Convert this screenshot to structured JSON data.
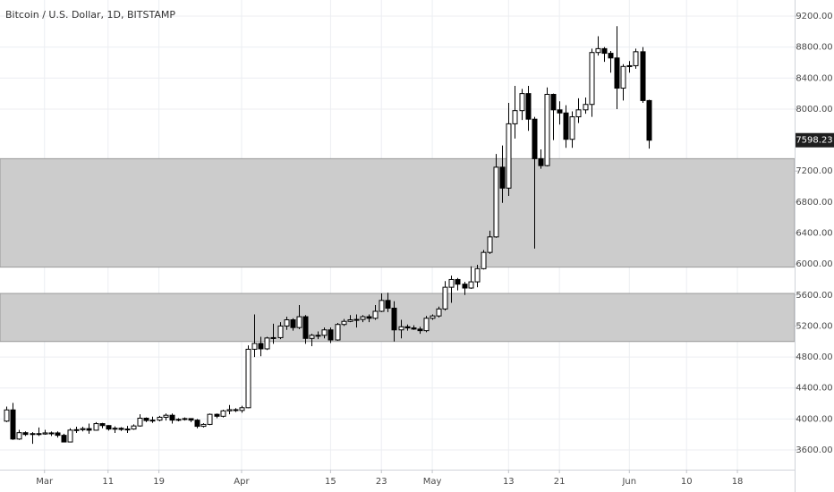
{
  "chart_data": {
    "type": "candlestick",
    "title": "Bitcoin / U.S. Dollar, 1D, BITSTAMP",
    "x": [
      "Feb 23",
      "Feb 24",
      "Feb 25",
      "Feb 26",
      "Feb 27",
      "Feb 28",
      "Mar 1",
      "Mar 2",
      "Mar 3",
      "Mar 4",
      "Mar 5",
      "Mar 6",
      "Mar 7",
      "Mar 8",
      "Mar 9",
      "Mar 10",
      "Mar 11",
      "Mar 12",
      "Mar 13",
      "Mar 14",
      "Mar 15",
      "Mar 16",
      "Mar 17",
      "Mar 18",
      "Mar 19",
      "Mar 20",
      "Mar 21",
      "Mar 22",
      "Mar 23",
      "Mar 24",
      "Mar 25",
      "Mar 26",
      "Mar 27",
      "Mar 28",
      "Mar 29",
      "Mar 30",
      "Mar 31",
      "Apr 1",
      "Apr 2",
      "Apr 3",
      "Apr 4",
      "Apr 5",
      "Apr 6",
      "Apr 7",
      "Apr 8",
      "Apr 9",
      "Apr 10",
      "Apr 11",
      "Apr 12",
      "Apr 13",
      "Apr 14",
      "Apr 15",
      "Apr 16",
      "Apr 17",
      "Apr 18",
      "Apr 19",
      "Apr 20",
      "Apr 21",
      "Apr 22",
      "Apr 23",
      "Apr 24",
      "Apr 25",
      "Apr 26",
      "Apr 27",
      "Apr 28",
      "Apr 29",
      "Apr 30",
      "May 1",
      "May 2",
      "May 3",
      "May 4",
      "May 5",
      "May 6",
      "May 7",
      "May 8",
      "May 9",
      "May 10",
      "May 11",
      "May 12",
      "May 13",
      "May 14",
      "May 15",
      "May 16",
      "May 17",
      "May 18",
      "May 19",
      "May 20",
      "May 21",
      "May 22",
      "May 23",
      "May 24",
      "May 25",
      "May 26",
      "May 27",
      "May 28",
      "May 29",
      "May 30",
      "May 31",
      "Jun 1",
      "Jun 2",
      "Jun 3",
      "Jun 4"
    ],
    "open": [
      3972,
      4117,
      3741,
      3823,
      3800,
      3811,
      3806,
      3820,
      3820,
      3789,
      3703,
      3856,
      3862,
      3875,
      3855,
      3940,
      3915,
      3870,
      3880,
      3865,
      3870,
      3910,
      4010,
      3980,
      3985,
      4022,
      4048,
      3985,
      3995,
      4005,
      3985,
      3905,
      3930,
      4060,
      4035,
      4105,
      4120,
      4110,
      4145,
      4900,
      4975,
      4905,
      5045,
      5050,
      5200,
      5280,
      5180,
      5320,
      5040,
      5080,
      5080,
      5150,
      5020,
      5220,
      5260,
      5280,
      5285,
      5320,
      5300,
      5390,
      5530,
      5430,
      5150,
      5190,
      5175,
      5160,
      5140,
      5300,
      5330,
      5420,
      5700,
      5800,
      5740,
      5690,
      5770,
      5940,
      6150,
      6350,
      7250,
      6980,
      7810,
      7980,
      8200,
      7870,
      7360,
      7270,
      8190,
      7990,
      7950,
      7610,
      7900,
      7990,
      8060,
      8730,
      8780,
      8720,
      8660,
      8270,
      8550,
      8560,
      8740,
      8110
    ],
    "high": [
      4160,
      4208,
      3860,
      3840,
      3830,
      3890,
      3860,
      3838,
      3840,
      3810,
      3880,
      3900,
      3900,
      3940,
      3960,
      3950,
      3920,
      3905,
      3895,
      3910,
      3930,
      4060,
      4020,
      4030,
      4040,
      4070,
      4070,
      4010,
      4020,
      4010,
      4000,
      3945,
      4070,
      4070,
      4120,
      4180,
      4140,
      4170,
      4950,
      5350,
      5060,
      5060,
      5230,
      5250,
      5320,
      5300,
      5470,
      5340,
      5100,
      5130,
      5180,
      5180,
      5240,
      5290,
      5340,
      5350,
      5340,
      5350,
      5470,
      5620,
      5630,
      5520,
      5280,
      5220,
      5210,
      5190,
      5330,
      5350,
      5450,
      5780,
      5850,
      5820,
      5770,
      5970,
      5990,
      6180,
      6430,
      7420,
      7530,
      8080,
      8300,
      8260,
      8300,
      7900,
      7480,
      8280,
      8200,
      8100,
      8050,
      7970,
      8140,
      8150,
      8780,
      8940,
      8800,
      8750,
      9070,
      8580,
      8620,
      8780,
      8800,
      8120
    ],
    "low": [
      3960,
      3730,
      3730,
      3780,
      3680,
      3780,
      3796,
      3780,
      3760,
      3700,
      3700,
      3820,
      3840,
      3810,
      3850,
      3880,
      3850,
      3820,
      3845,
      3820,
      3860,
      3900,
      3960,
      3950,
      3970,
      3980,
      3940,
      3970,
      3980,
      3960,
      3880,
      3890,
      3920,
      4010,
      4020,
      4060,
      4090,
      4080,
      4140,
      4800,
      4810,
      4890,
      4970,
      5030,
      5150,
      5140,
      5160,
      4970,
      4940,
      5030,
      5040,
      4980,
      5010,
      5200,
      5250,
      5180,
      5250,
      5250,
      5280,
      5380,
      5380,
      5000,
      5040,
      5140,
      5150,
      5100,
      5120,
      5280,
      5310,
      5400,
      5500,
      5660,
      5600,
      5680,
      5700,
      5930,
      6130,
      6340,
      6790,
      6880,
      7620,
      7860,
      7720,
      6200,
      7230,
      7260,
      7600,
      7800,
      7500,
      7500,
      7820,
      7940,
      7900,
      8690,
      8610,
      8470,
      8000,
      8110,
      8470,
      8520,
      8080,
      7490
    ],
    "close": [
      4117,
      3741,
      3823,
      3800,
      3811,
      3806,
      3820,
      3820,
      3789,
      3703,
      3856,
      3862,
      3875,
      3855,
      3940,
      3915,
      3870,
      3880,
      3865,
      3870,
      3910,
      4010,
      3980,
      3985,
      4022,
      4048,
      3985,
      3995,
      4005,
      3985,
      3905,
      3930,
      4060,
      4035,
      4105,
      4120,
      4110,
      4145,
      4900,
      4975,
      4905,
      5045,
      5050,
      5200,
      5280,
      5180,
      5320,
      5040,
      5080,
      5080,
      5150,
      5020,
      5220,
      5260,
      5280,
      5285,
      5320,
      5300,
      5390,
      5530,
      5430,
      5150,
      5190,
      5175,
      5160,
      5140,
      5300,
      5330,
      5420,
      5700,
      5800,
      5740,
      5690,
      5770,
      5940,
      6150,
      6350,
      7250,
      6980,
      7810,
      7980,
      8200,
      7870,
      7360,
      7270,
      8190,
      7990,
      7950,
      7610,
      7900,
      7990,
      8060,
      8730,
      8780,
      8720,
      8660,
      8270,
      8550,
      8560,
      8740,
      8110,
      7598.23
    ],
    "up_color": "#ffffff",
    "down_color": "#000000",
    "outline_color": "#000000",
    "zones": [
      [
        5000,
        5620
      ],
      [
        5960,
        7360
      ]
    ],
    "zone_color": "#cccccc",
    "last_price": 7598.23,
    "xlim": [
      "Feb 22",
      "Jun 27"
    ],
    "xticks": [
      {
        "value": "Mar 1",
        "label": "Mar"
      },
      {
        "value": "Mar 11",
        "label": "11"
      },
      {
        "value": "Mar 19",
        "label": "19"
      },
      {
        "value": "Apr 1",
        "label": "Apr"
      },
      {
        "value": "Apr 15",
        "label": "15"
      },
      {
        "value": "Apr 23",
        "label": "23"
      },
      {
        "value": "May 1",
        "label": "May"
      },
      {
        "value": "May 13",
        "label": "13"
      },
      {
        "value": "May 21",
        "label": "21"
      },
      {
        "value": "Jun 1",
        "label": "Jun"
      },
      {
        "value": "Jun 10",
        "label": "10"
      },
      {
        "value": "Jun 18",
        "label": "18"
      }
    ],
    "ylim": [
      3346,
      9408
    ],
    "yticks": [
      {
        "value": 3600,
        "label": "3600.00"
      },
      {
        "value": 4000,
        "label": "4000.00"
      },
      {
        "value": 4400,
        "label": "4400.00"
      },
      {
        "value": 4800,
        "label": "4800.00"
      },
      {
        "value": 5200,
        "label": "5200.00"
      },
      {
        "value": 5600,
        "label": "5600.00"
      },
      {
        "value": 6000,
        "label": "6000.00"
      },
      {
        "value": 6400,
        "label": "6400.00"
      },
      {
        "value": 6800,
        "label": "6800.00"
      },
      {
        "value": 7200,
        "label": "7200.00"
      },
      {
        "value": 8000,
        "label": "8000.00"
      },
      {
        "value": 8400,
        "label": "8400.00"
      },
      {
        "value": 8800,
        "label": "8800.00"
      },
      {
        "value": 9200,
        "label": "9200.00"
      }
    ],
    "grid": true
  }
}
